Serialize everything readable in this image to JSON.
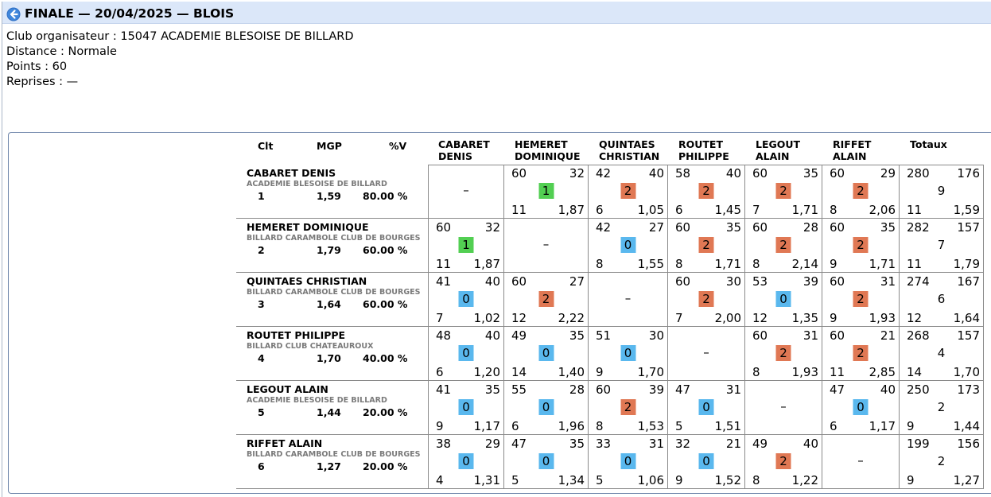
{
  "title": "FINALE — 20/04/2025 — BLOIS",
  "info": [
    "Club organisateur : 15047 ACADEMIE BLESOISE DE BILLARD",
    "Distance : Normale",
    "Points : 60",
    "Reprises : —"
  ],
  "headers": {
    "clt": "Clt",
    "mgp": "MGP",
    "pv": "%V",
    "cols": [
      [
        "CABARET",
        "DENIS"
      ],
      [
        "HEMERET",
        "DOMINIQUE"
      ],
      [
        "QUINTAES",
        "CHRISTIAN"
      ],
      [
        "ROUTET",
        "PHILIPPE"
      ],
      [
        "LEGOUT",
        "ALAIN"
      ],
      [
        "RIFFET",
        "ALAIN"
      ]
    ],
    "totaux": "Totaux"
  },
  "colors": {
    "win": "#e07854",
    "loss": "#5ab8ee",
    "draw": "#52cf52"
  },
  "players": [
    {
      "name": "CABARET DENIS",
      "club": "ACADEMIE BLESOISE DE BILLARD",
      "clt": "1",
      "mgp": "1,59",
      "pv": "80.00 %",
      "cells": [
        null,
        {
          "pts": "60",
          "opp": "32",
          "res": "1",
          "kind": "draw",
          "rep": "11",
          "moy": "1,87"
        },
        {
          "pts": "42",
          "opp": "40",
          "res": "2",
          "kind": "win",
          "rep": "6",
          "moy": "1,05"
        },
        {
          "pts": "58",
          "opp": "40",
          "res": "2",
          "kind": "win",
          "rep": "6",
          "moy": "1,45"
        },
        {
          "pts": "60",
          "opp": "35",
          "res": "2",
          "kind": "win",
          "rep": "7",
          "moy": "1,71"
        },
        {
          "pts": "60",
          "opp": "29",
          "res": "2",
          "kind": "win",
          "rep": "8",
          "moy": "2,06"
        }
      ],
      "total": {
        "pts": "280",
        "opp": "176",
        "mp": "9",
        "rep": "11",
        "moy": "1,59"
      }
    },
    {
      "name": "HEMERET DOMINIQUE",
      "club": "BILLARD CARAMBOLE CLUB DE BOURGES",
      "clt": "2",
      "mgp": "1,79",
      "pv": "60.00 %",
      "cells": [
        {
          "pts": "60",
          "opp": "32",
          "res": "1",
          "kind": "draw",
          "rep": "11",
          "moy": "1,87"
        },
        null,
        {
          "pts": "42",
          "opp": "27",
          "res": "0",
          "kind": "loss",
          "rep": "8",
          "moy": "1,55"
        },
        {
          "pts": "60",
          "opp": "35",
          "res": "2",
          "kind": "win",
          "rep": "8",
          "moy": "1,71"
        },
        {
          "pts": "60",
          "opp": "28",
          "res": "2",
          "kind": "win",
          "rep": "8",
          "moy": "2,14"
        },
        {
          "pts": "60",
          "opp": "35",
          "res": "2",
          "kind": "win",
          "rep": "9",
          "moy": "1,71"
        }
      ],
      "total": {
        "pts": "282",
        "opp": "157",
        "mp": "7",
        "rep": "11",
        "moy": "1,79"
      }
    },
    {
      "name": "QUINTAES CHRISTIAN",
      "club": "BILLARD CARAMBOLE CLUB DE BOURGES",
      "clt": "3",
      "mgp": "1,64",
      "pv": "60.00 %",
      "cells": [
        {
          "pts": "41",
          "opp": "40",
          "res": "0",
          "kind": "loss",
          "rep": "7",
          "moy": "1,02"
        },
        {
          "pts": "60",
          "opp": "27",
          "res": "2",
          "kind": "win",
          "rep": "12",
          "moy": "2,22"
        },
        null,
        {
          "pts": "60",
          "opp": "30",
          "res": "2",
          "kind": "win",
          "rep": "7",
          "moy": "2,00"
        },
        {
          "pts": "53",
          "opp": "39",
          "res": "0",
          "kind": "loss",
          "rep": "12",
          "moy": "1,35"
        },
        {
          "pts": "60",
          "opp": "31",
          "res": "2",
          "kind": "win",
          "rep": "9",
          "moy": "1,93"
        }
      ],
      "total": {
        "pts": "274",
        "opp": "167",
        "mp": "6",
        "rep": "12",
        "moy": "1,64"
      }
    },
    {
      "name": "ROUTET PHILIPPE",
      "club": "BILLARD CLUB CHATEAUROUX",
      "clt": "4",
      "mgp": "1,70",
      "pv": "40.00 %",
      "cells": [
        {
          "pts": "48",
          "opp": "40",
          "res": "0",
          "kind": "loss",
          "rep": "6",
          "moy": "1,20"
        },
        {
          "pts": "49",
          "opp": "35",
          "res": "0",
          "kind": "loss",
          "rep": "14",
          "moy": "1,40"
        },
        {
          "pts": "51",
          "opp": "30",
          "res": "0",
          "kind": "loss",
          "rep": "9",
          "moy": "1,70"
        },
        null,
        {
          "pts": "60",
          "opp": "31",
          "res": "2",
          "kind": "win",
          "rep": "8",
          "moy": "1,93"
        },
        {
          "pts": "60",
          "opp": "21",
          "res": "2",
          "kind": "win",
          "rep": "11",
          "moy": "2,85"
        }
      ],
      "total": {
        "pts": "268",
        "opp": "157",
        "mp": "4",
        "rep": "14",
        "moy": "1,70"
      }
    },
    {
      "name": "LEGOUT ALAIN",
      "club": "ACADEMIE BLESOISE DE BILLARD",
      "clt": "5",
      "mgp": "1,44",
      "pv": "20.00 %",
      "cells": [
        {
          "pts": "41",
          "opp": "35",
          "res": "0",
          "kind": "loss",
          "rep": "9",
          "moy": "1,17"
        },
        {
          "pts": "55",
          "opp": "28",
          "res": "0",
          "kind": "loss",
          "rep": "6",
          "moy": "1,96"
        },
        {
          "pts": "60",
          "opp": "39",
          "res": "2",
          "kind": "win",
          "rep": "8",
          "moy": "1,53"
        },
        {
          "pts": "47",
          "opp": "31",
          "res": "0",
          "kind": "loss",
          "rep": "5",
          "moy": "1,51"
        },
        null,
        {
          "pts": "47",
          "opp": "40",
          "res": "0",
          "kind": "loss",
          "rep": "6",
          "moy": "1,17"
        }
      ],
      "total": {
        "pts": "250",
        "opp": "173",
        "mp": "2",
        "rep": "9",
        "moy": "1,44"
      }
    },
    {
      "name": "RIFFET ALAIN",
      "club": "BILLARD CARAMBOLE CLUB DE BOURGES",
      "clt": "6",
      "mgp": "1,27",
      "pv": "20.00 %",
      "cells": [
        {
          "pts": "38",
          "opp": "29",
          "res": "0",
          "kind": "loss",
          "rep": "4",
          "moy": "1,31"
        },
        {
          "pts": "47",
          "opp": "35",
          "res": "0",
          "kind": "loss",
          "rep": "5",
          "moy": "1,34"
        },
        {
          "pts": "33",
          "opp": "31",
          "res": "0",
          "kind": "loss",
          "rep": "5",
          "moy": "1,06"
        },
        {
          "pts": "32",
          "opp": "21",
          "res": "0",
          "kind": "loss",
          "rep": "9",
          "moy": "1,52"
        },
        {
          "pts": "49",
          "opp": "40",
          "res": "2",
          "kind": "win",
          "rep": "8",
          "moy": "1,22"
        },
        null
      ],
      "total": {
        "pts": "199",
        "opp": "156",
        "mp": "2",
        "rep": "9",
        "moy": "1,27"
      }
    }
  ],
  "empty_mark": "–"
}
